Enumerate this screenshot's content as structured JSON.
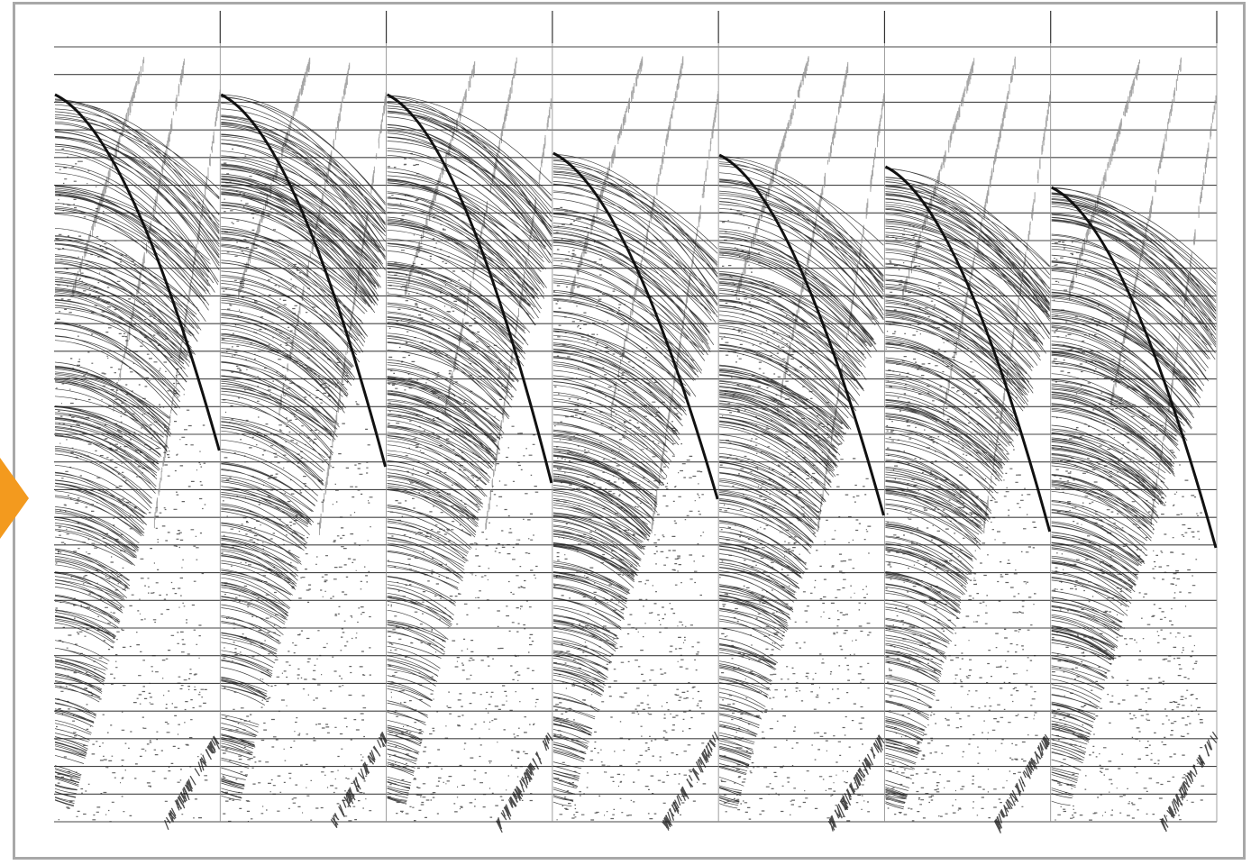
{
  "figure": {
    "description_tags": [
      "seismic-record",
      "shot-gathers"
    ],
    "panel_count": 7,
    "trace_rows": 28,
    "colors": {
      "frame_border": "#a8a8a8",
      "accent_arrow": "#f39a1e",
      "ink": "#111111",
      "background": "#ffffff"
    },
    "panel_labels": [
      "",
      "",
      "",
      "",
      "",
      "",
      ""
    ]
  }
}
